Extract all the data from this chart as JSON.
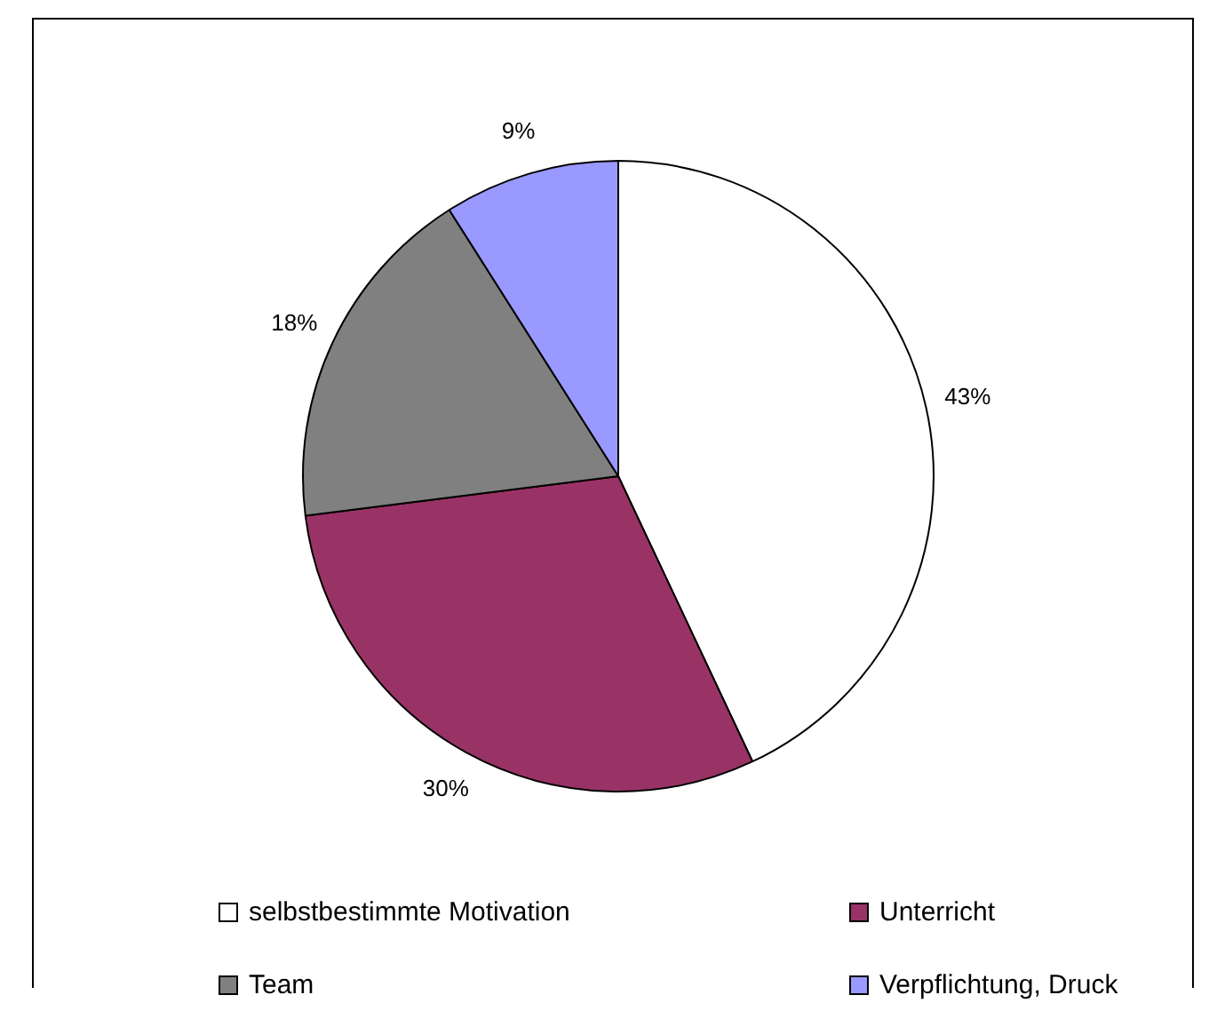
{
  "chart_data": {
    "type": "pie",
    "categories": [
      "selbstbestimmte Motivation",
      "Unterricht",
      "Team",
      "Verpflichtung, Druck"
    ],
    "values": [
      43,
      30,
      18,
      9
    ],
    "colors": [
      "#ffffff",
      "#993366",
      "#808080",
      "#9999ff"
    ],
    "value_labels": [
      "43%",
      "30%",
      "18%",
      "9%"
    ],
    "legend": "bottom"
  }
}
